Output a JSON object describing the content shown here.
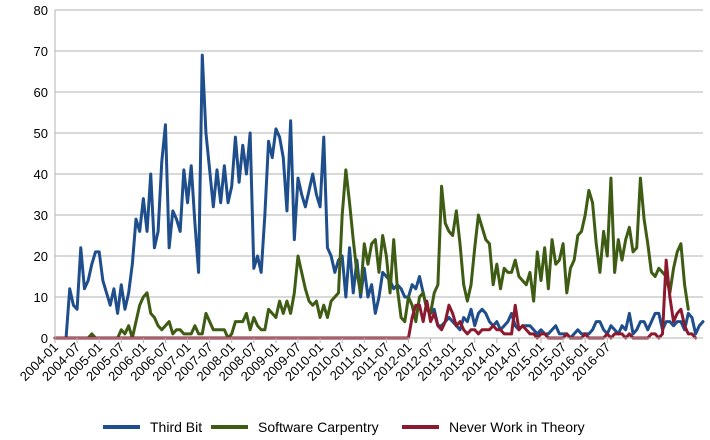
{
  "chart_data": {
    "type": "line",
    "x_start": "2004-01",
    "x_tick_labels": [
      "2004-01",
      "2004-07",
      "2005-01",
      "2005-07",
      "2006-01",
      "2006-07",
      "2007-01",
      "2007-07",
      "2008-01",
      "2008-07",
      "2009-01",
      "2009-07",
      "2010-01",
      "2010-07",
      "2011-01",
      "2011-07",
      "2012-01",
      "2012-07",
      "2013-01",
      "2013-07",
      "2014-01",
      "2014-07",
      "2015-01",
      "2015-07",
      "2016-01",
      "2016-07"
    ],
    "ylim": [
      0,
      80
    ],
    "y_ticks": [
      "0",
      "10",
      "20",
      "30",
      "40",
      "50",
      "60",
      "70",
      "80"
    ],
    "grid": "horizontal",
    "legend_position": "bottom",
    "series": [
      {
        "name": "Third Bit",
        "color": "#1f4e8c",
        "values": [
          0,
          0,
          0,
          0,
          12,
          8,
          7,
          22,
          12,
          14,
          18,
          21,
          21,
          14,
          11,
          8,
          12,
          6,
          13,
          7,
          11,
          18,
          29,
          26,
          34,
          26,
          40,
          22,
          26,
          43,
          52,
          22,
          31,
          29,
          26,
          41,
          33,
          42,
          28,
          16,
          69,
          50,
          41,
          32,
          41,
          33,
          42,
          33,
          37,
          49,
          38,
          47,
          40,
          50,
          17,
          20,
          16,
          30,
          48,
          44,
          51,
          49,
          44,
          31,
          53,
          24,
          39,
          35,
          32,
          36,
          40,
          35,
          32,
          49,
          22,
          20,
          16,
          19,
          20,
          10,
          22,
          11,
          19,
          10,
          17,
          10,
          13,
          6,
          10,
          16,
          15,
          14,
          12,
          13,
          12,
          10,
          10,
          13,
          12,
          15,
          11,
          7,
          6,
          7,
          3,
          3,
          4,
          5,
          4,
          3,
          2,
          5,
          4,
          7,
          3,
          6,
          7,
          6,
          4,
          3,
          4,
          2,
          3,
          4,
          6,
          3,
          2,
          3,
          3,
          3,
          2,
          1,
          2,
          1,
          1,
          2,
          3,
          1,
          1,
          1,
          0,
          1,
          2,
          1,
          1,
          1,
          2,
          4,
          4,
          2,
          1,
          3,
          2,
          1,
          3,
          2,
          6,
          1,
          2,
          4,
          4,
          2,
          4,
          6,
          6,
          2,
          4,
          4,
          3,
          4,
          4,
          2,
          6,
          5,
          1,
          3,
          4
        ]
      },
      {
        "name": "Software Carpentry",
        "color": "#3e5c13",
        "values": [
          0,
          0,
          0,
          0,
          0,
          0,
          0,
          0,
          0,
          0,
          1,
          0,
          0,
          0,
          0,
          0,
          0,
          0,
          2,
          1,
          3,
          0,
          4,
          8,
          10,
          11,
          6,
          5,
          3,
          2,
          3,
          4,
          1,
          2,
          2,
          1,
          1,
          1,
          3,
          1,
          1,
          6,
          4,
          2,
          2,
          2,
          2,
          0,
          1,
          4,
          4,
          4,
          6,
          2,
          5,
          3,
          2,
          2,
          7,
          6,
          5,
          9,
          6,
          9,
          6,
          11,
          20,
          16,
          12,
          9,
          8,
          9,
          5,
          8,
          5,
          9,
          10,
          11,
          30,
          41,
          33,
          24,
          16,
          11,
          23,
          18,
          23,
          24,
          16,
          25,
          20,
          11,
          24,
          12,
          5,
          4,
          10,
          8,
          4,
          10,
          11,
          7,
          6,
          11,
          13,
          37,
          28,
          26,
          25,
          31,
          23,
          13,
          9,
          13,
          22,
          30,
          27,
          24,
          23,
          13,
          18,
          12,
          17,
          16,
          16,
          19,
          15,
          14,
          13,
          16,
          9,
          21,
          14,
          22,
          12,
          24,
          18,
          19,
          23,
          11,
          17,
          19,
          25,
          26,
          30,
          36,
          33,
          23,
          16,
          26,
          20,
          39,
          16,
          24,
          19,
          24,
          27,
          21,
          22,
          39,
          29,
          23,
          16,
          15,
          17,
          16,
          15,
          11,
          17,
          21,
          23,
          13,
          7
        ]
      },
      {
        "name": "Never Work in Theory",
        "color": "#8c1a2e",
        "values": [
          0,
          0,
          0,
          0,
          0,
          0,
          0,
          0,
          0,
          0,
          0,
          0,
          0,
          0,
          0,
          0,
          0,
          0,
          0,
          0,
          0,
          0,
          0,
          0,
          0,
          0,
          0,
          0,
          0,
          0,
          0,
          0,
          0,
          0,
          0,
          0,
          0,
          0,
          0,
          0,
          0,
          0,
          0,
          0,
          0,
          0,
          0,
          0,
          0,
          0,
          0,
          0,
          0,
          0,
          0,
          0,
          0,
          0,
          0,
          0,
          0,
          0,
          0,
          0,
          0,
          0,
          0,
          0,
          0,
          0,
          0,
          0,
          0,
          0,
          0,
          0,
          0,
          0,
          0,
          0,
          0,
          0,
          0,
          0,
          0,
          0,
          0,
          0,
          0,
          0,
          0,
          0,
          0,
          0,
          0,
          0,
          0,
          5,
          8,
          8,
          4,
          9,
          4,
          6,
          3,
          2,
          4,
          8,
          6,
          3,
          4,
          2,
          1,
          2,
          2,
          1,
          2,
          2,
          2,
          3,
          2,
          2,
          1,
          1,
          1,
          8,
          2,
          3,
          2,
          1,
          1,
          0,
          1,
          1,
          0,
          0,
          0,
          0,
          0,
          1,
          0,
          0,
          0,
          0,
          1,
          0,
          0,
          0,
          0,
          0,
          1,
          0,
          1,
          1,
          1,
          0,
          1,
          0,
          0,
          0,
          0,
          0,
          1,
          1,
          0,
          1,
          19,
          10,
          4,
          6,
          7,
          3,
          1,
          1,
          0
        ]
      }
    ]
  }
}
